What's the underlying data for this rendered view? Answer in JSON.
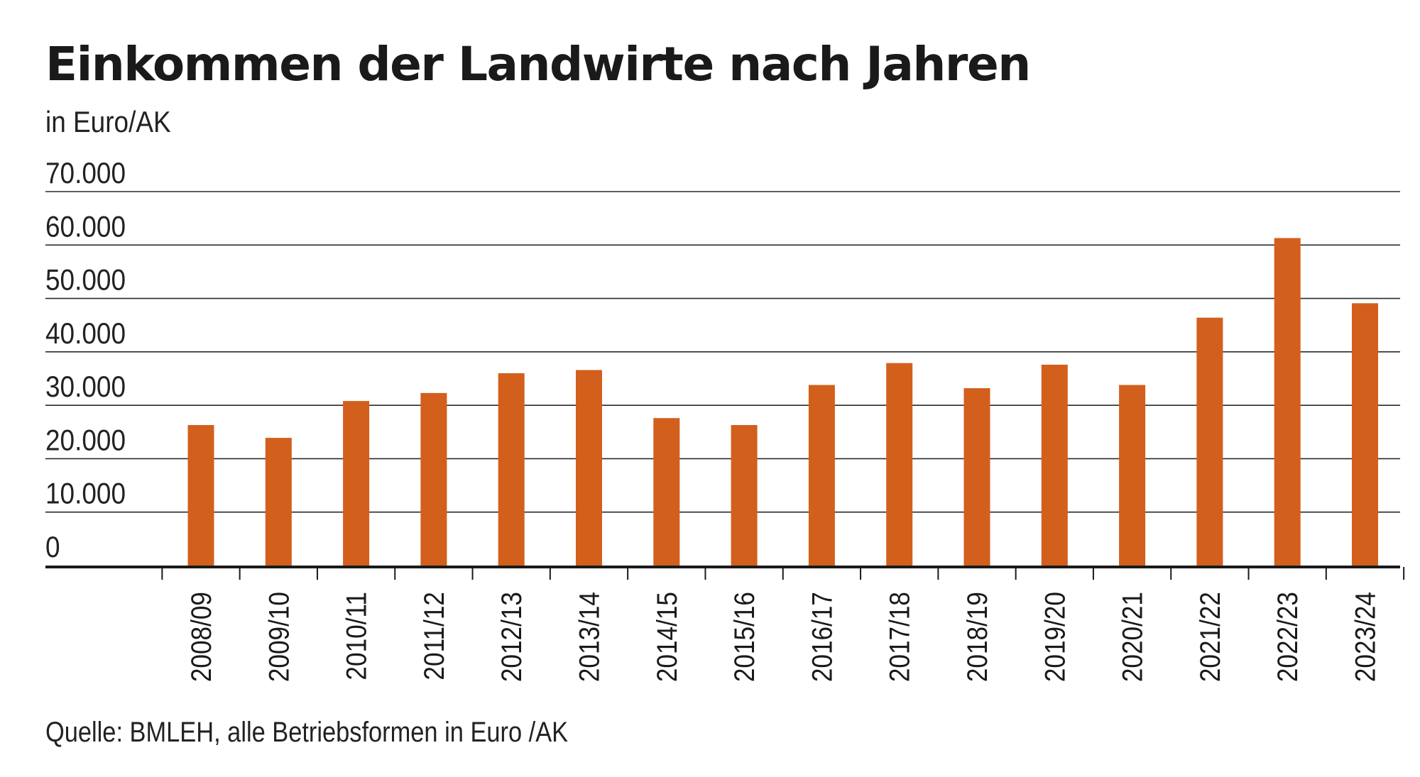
{
  "chart_data": {
    "type": "bar",
    "title": "Einkommen der Landwirte nach Jahren",
    "subtitle": "in Euro/AK",
    "source": "Quelle: BMLEH,  alle Betriebsformen  in Euro /AK",
    "categories": [
      "2008/09",
      "2009/10",
      "2010/11",
      "2011/12",
      "2012/13",
      "2013/14",
      "2014/15",
      "2015/16",
      "2016/17",
      "2017/18",
      "2018/19",
      "2019/20",
      "2020/21",
      "2021/22",
      "2022/23",
      "2023/24"
    ],
    "values": [
      26300,
      23900,
      30800,
      32300,
      36000,
      36600,
      27600,
      26300,
      33800,
      37900,
      33200,
      37600,
      33800,
      46400,
      61300,
      49100
    ],
    "yticks": [
      "0",
      "10.000",
      "20.000",
      "30.000",
      "40.000",
      "50.000",
      "60.000",
      "70.000"
    ],
    "ylim": [
      0,
      70000
    ],
    "grid": true,
    "bar_color": "#d35f1c"
  }
}
